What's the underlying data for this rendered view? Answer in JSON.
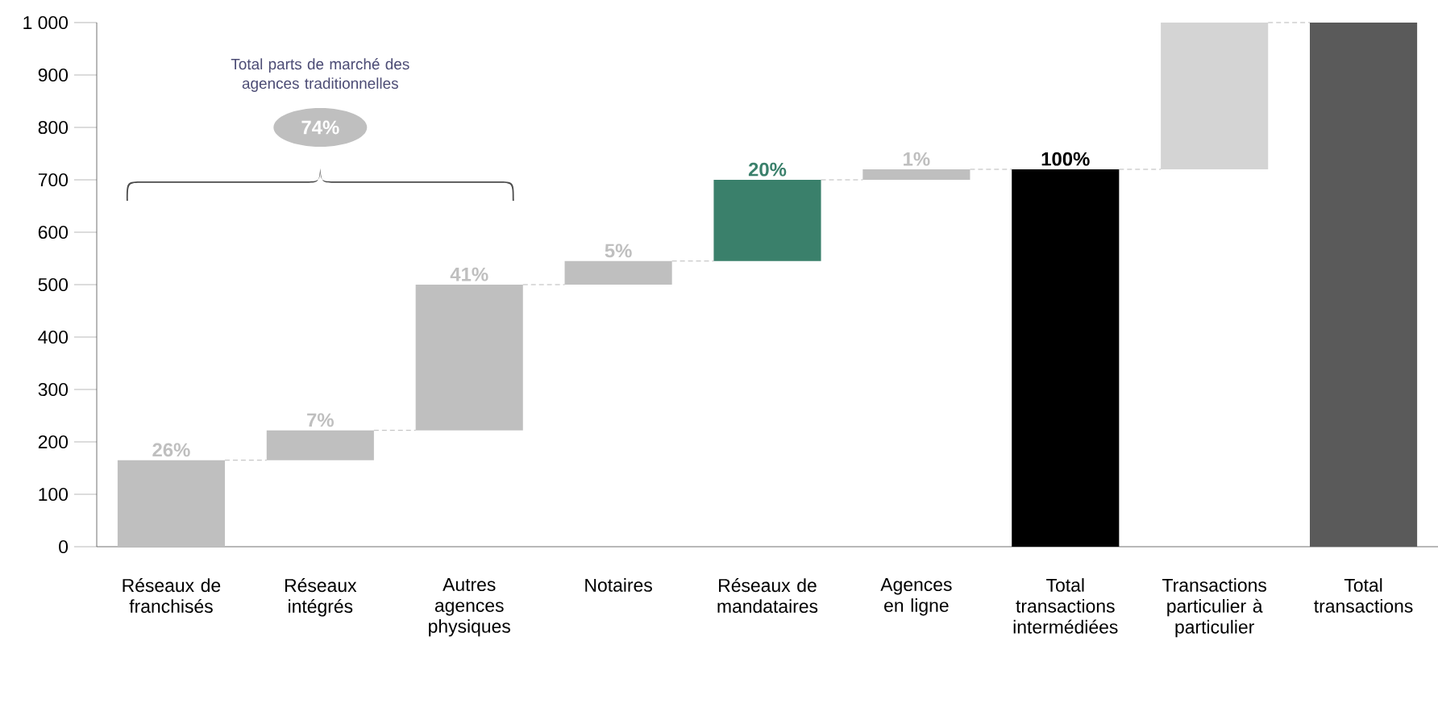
{
  "chart_data": {
    "type": "bar",
    "categories": [
      "Réseaux de franchisés",
      "Réseaux intégrés",
      "Autres agences physiques",
      "Notaires",
      "Réseaux de mandataires",
      "Agences en ligne",
      "Total transactions intermédiées",
      "Transactions particulier à particulier",
      "Total transactions"
    ],
    "values": [
      165,
      57,
      278,
      45,
      155,
      20,
      720,
      280,
      1000
    ],
    "base": [
      0,
      165,
      222,
      500,
      545,
      700,
      0,
      720,
      0
    ],
    "colors": [
      "#bfbfbf",
      "#bfbfbf",
      "#bfbfbf",
      "#bfbfbf",
      "#3a806b",
      "#bfbfbf",
      "#000000",
      "#d4d4d4",
      "#5a5a5a"
    ],
    "ylim": [
      0,
      1000
    ],
    "yticks": [
      0,
      100,
      200,
      300,
      400,
      500,
      600,
      700,
      800,
      900,
      {
        "value": 1000,
        "label": "1 000"
      }
    ],
    "annotations": [
      "Total parts de marché des agences traditionnelles",
      "74%",
      {
        "text": "26%",
        "x": "Réseaux de franchisés",
        "y": 165
      },
      {
        "text": "7%",
        "x": "Réseaux intégrés",
        "y": 222
      },
      {
        "text": "41%",
        "x": "Autres agences physiques",
        "y": 500
      },
      {
        "text": "5%",
        "x": "Notaires",
        "y": 545
      },
      {
        "text": "20%",
        "x": "Réseaux de mandataires",
        "y": 700
      },
      {
        "text": "1%",
        "x": "Agences en ligne",
        "y": 720
      },
      {
        "text": "100%",
        "x": "Total transactions intermédiées",
        "y": 720
      }
    ],
    "grid": false
  }
}
